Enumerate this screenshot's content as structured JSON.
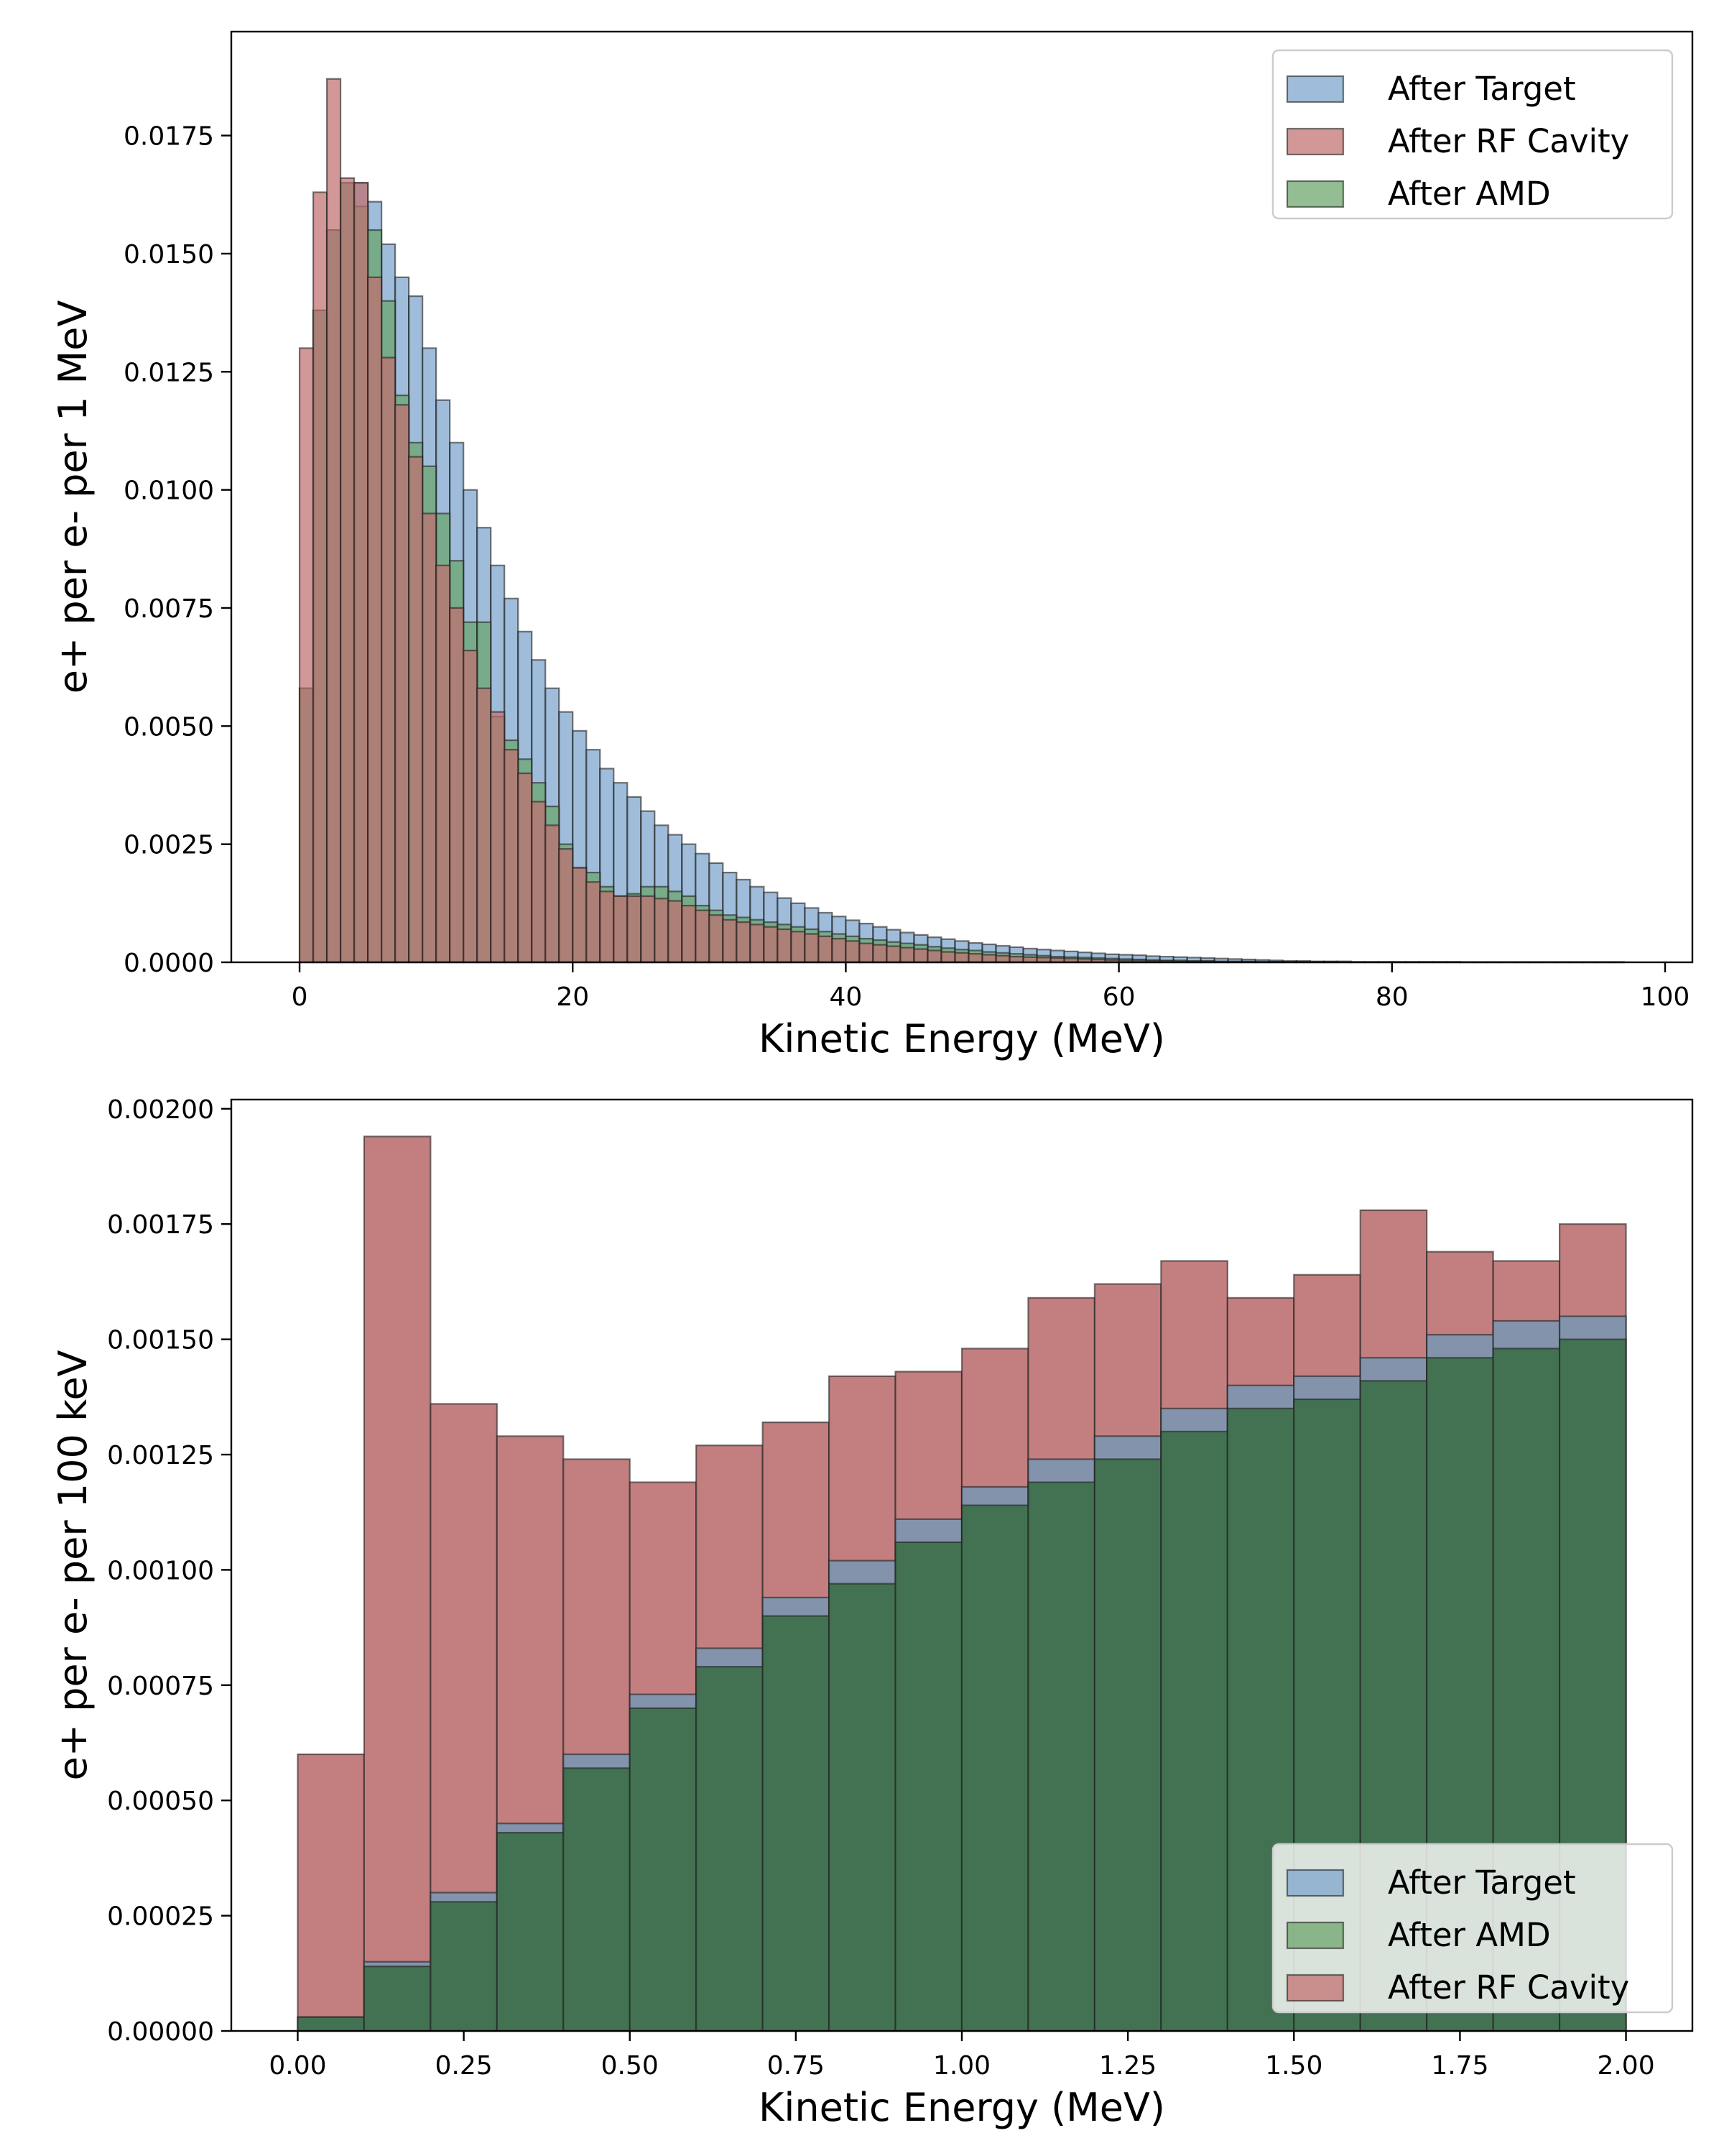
{
  "chart_data": [
    {
      "type": "bar",
      "subtype": "histogram",
      "xlabel": "Kinetic Energy (MeV)",
      "ylabel": "e+ per e- per 1 MeV",
      "xlim": [
        -5,
        102
      ],
      "ylim": [
        0,
        0.0197
      ],
      "x_ticks": [
        0,
        20,
        40,
        60,
        80,
        100
      ],
      "y_ticks": [
        0.0,
        0.0025,
        0.005,
        0.0075,
        0.01,
        0.0125,
        0.015,
        0.0175
      ],
      "y_tick_labels": [
        "0.0000",
        "0.0025",
        "0.0050",
        "0.0075",
        "0.0100",
        "0.0125",
        "0.0150",
        "0.0175"
      ],
      "x_tick_labels": [
        "0",
        "20",
        "40",
        "60",
        "80",
        "100"
      ],
      "bin_start": 0,
      "bin_width": 1,
      "legend_position": "top-right",
      "legend": [
        "After Target",
        "After RF Cavity",
        "After AMD"
      ],
      "series": [
        {
          "name": "After Target",
          "color": "#7aa4cc",
          "values": [
            0.0058,
            0.0138,
            0.0155,
            0.0165,
            0.0165,
            0.0161,
            0.0152,
            0.0145,
            0.0141,
            0.013,
            0.0119,
            0.011,
            0.01,
            0.0092,
            0.0084,
            0.0077,
            0.007,
            0.0064,
            0.0058,
            0.0053,
            0.0049,
            0.0045,
            0.0041,
            0.0038,
            0.0035,
            0.0032,
            0.0029,
            0.0027,
            0.0025,
            0.0023,
            0.0021,
            0.0019,
            0.00175,
            0.0016,
            0.00148,
            0.00136,
            0.00125,
            0.00115,
            0.00105,
            0.00097,
            0.00089,
            0.00082,
            0.00075,
            0.00069,
            0.00063,
            0.00058,
            0.00053,
            0.00049,
            0.00045,
            0.00041,
            0.00038,
            0.00035,
            0.00032,
            0.00029,
            0.00027,
            0.00025,
            0.00023,
            0.00021,
            0.00019,
            0.00017,
            0.00016,
            0.00015,
            0.00013,
            0.00012,
            0.00011,
            0.0001,
            9e-05,
            8e-05,
            7e-05,
            6e-05,
            5e-05,
            4e-05,
            3e-05,
            3e-05,
            2e-05,
            2e-05,
            2e-05,
            1e-05,
            1e-05,
            1e-05,
            1e-05,
            1e-05,
            1e-05,
            1e-05,
            1e-05,
            5e-06,
            5e-06,
            5e-06,
            5e-06,
            5e-06,
            5e-06,
            5e-06,
            5e-06,
            5e-06,
            5e-06,
            5e-06,
            5e-06
          ]
        },
        {
          "name": "After AMD",
          "color": "#6aa36a",
          "values": [
            0.0058,
            0.0138,
            0.0155,
            0.0165,
            0.016,
            0.0155,
            0.014,
            0.012,
            0.011,
            0.0105,
            0.0095,
            0.0085,
            0.0072,
            0.0072,
            0.0052,
            0.0047,
            0.0043,
            0.0038,
            0.0033,
            0.0025,
            0.002,
            0.0019,
            0.0016,
            0.0014,
            0.00145,
            0.0016,
            0.0016,
            0.0015,
            0.0014,
            0.0012,
            0.0011,
            0.001,
            0.00095,
            0.0009,
            0.00085,
            0.0008,
            0.00075,
            0.0007,
            0.00065,
            0.0006,
            0.00055,
            0.0005,
            0.00047,
            0.00043,
            0.0004,
            0.00037,
            0.00033,
            0.0003,
            0.00027,
            0.00025,
            0.00022,
            0.0002,
            0.00018,
            0.00016,
            0.00014,
            0.00012,
            0.00011,
            0.0001,
            9e-05,
            8e-05,
            7e-05,
            6e-05,
            5e-05,
            4e-05,
            4e-05,
            3e-05,
            3e-05,
            2e-05,
            2e-05,
            2e-05,
            1e-05,
            1e-05,
            1e-05,
            1e-05,
            1e-05,
            1e-05,
            5e-06,
            5e-06,
            5e-06,
            5e-06,
            5e-06,
            5e-06,
            5e-06,
            5e-06,
            5e-06,
            5e-06,
            5e-06,
            5e-06,
            5e-06,
            5e-06,
            5e-06,
            5e-06,
            5e-06,
            5e-06,
            5e-06,
            5e-06,
            5e-06
          ]
        },
        {
          "name": "After RF Cavity",
          "color": "#c06f6f",
          "values": [
            0.013,
            0.0163,
            0.0187,
            0.0166,
            0.0165,
            0.0145,
            0.0128,
            0.0118,
            0.0107,
            0.0095,
            0.0084,
            0.0075,
            0.0066,
            0.0058,
            0.0053,
            0.0045,
            0.004,
            0.0034,
            0.0029,
            0.0024,
            0.002,
            0.0017,
            0.0015,
            0.0014,
            0.0014,
            0.0014,
            0.00135,
            0.0013,
            0.0012,
            0.0011,
            0.001,
            0.0009,
            0.00085,
            0.0008,
            0.00075,
            0.0007,
            0.00065,
            0.0006,
            0.00055,
            0.0005,
            0.00045,
            0.0004,
            0.00037,
            0.00034,
            0.00031,
            0.00028,
            0.00025,
            0.00022,
            0.0002,
            0.00018,
            0.00016,
            0.00014,
            0.00012,
            0.00011,
            0.0001,
            9e-05,
            8e-05,
            7e-05,
            6e-05,
            5e-05,
            4e-05,
            4e-05,
            3e-05,
            3e-05,
            2e-05,
            2e-05,
            2e-05,
            1e-05,
            1e-05,
            1e-05,
            1e-05,
            1e-05,
            5e-06,
            5e-06,
            5e-06,
            5e-06,
            5e-06,
            5e-06,
            5e-06,
            5e-06,
            5e-06,
            5e-06,
            5e-06,
            5e-06,
            5e-06,
            5e-06,
            5e-06,
            5e-06,
            5e-06,
            5e-06,
            5e-06,
            5e-06,
            5e-06,
            5e-06,
            5e-06,
            5e-06,
            5e-06
          ]
        }
      ]
    },
    {
      "type": "bar",
      "subtype": "histogram",
      "xlabel": "Kinetic Energy (MeV)",
      "ylabel": "e+ per e- per 100 keV",
      "xlim": [
        -0.1,
        2.1
      ],
      "ylim": [
        0,
        0.00202
      ],
      "x_ticks": [
        0.0,
        0.25,
        0.5,
        0.75,
        1.0,
        1.25,
        1.5,
        1.75,
        2.0
      ],
      "y_ticks": [
        0.0,
        0.00025,
        0.0005,
        0.00075,
        0.001,
        0.00125,
        0.0015,
        0.00175,
        0.002
      ],
      "y_tick_labels": [
        "0.00000",
        "0.00025",
        "0.00050",
        "0.00075",
        "0.00100",
        "0.00125",
        "0.00150",
        "0.00175",
        "0.00200"
      ],
      "x_tick_labels": [
        "0.00",
        "0.25",
        "0.50",
        "0.75",
        "1.00",
        "1.25",
        "1.50",
        "1.75",
        "2.00"
      ],
      "bin_start": 0,
      "bin_width": 0.1,
      "legend_position": "bottom-right",
      "legend": [
        "After Target",
        "After AMD",
        "After RF Cavity"
      ],
      "series": [
        {
          "name": "After RF Cavity",
          "color": "#c17b7b",
          "values": [
            0.0006,
            0.00194,
            0.00136,
            0.00129,
            0.00124,
            0.00119,
            0.00127,
            0.00132,
            0.00142,
            0.00143,
            0.00148,
            0.00159,
            0.00162,
            0.00167,
            0.00159,
            0.00164,
            0.00178,
            0.00169,
            0.00167,
            0.00175
          ]
        },
        {
          "name": "After Target",
          "color": "#8094ac",
          "values": [
            3e-05,
            0.00015,
            0.0003,
            0.00045,
            0.0006,
            0.00073,
            0.00083,
            0.00094,
            0.00102,
            0.00111,
            0.00118,
            0.00124,
            0.00129,
            0.00135,
            0.0014,
            0.00142,
            0.00146,
            0.00151,
            0.00154,
            0.00155
          ]
        },
        {
          "name": "After AMD",
          "color": "#417150",
          "values": [
            3e-05,
            0.00014,
            0.00028,
            0.00043,
            0.00057,
            0.0007,
            0.00079,
            0.0009,
            0.00097,
            0.00106,
            0.00114,
            0.00119,
            0.00124,
            0.0013,
            0.00135,
            0.00137,
            0.00141,
            0.00146,
            0.00148,
            0.0015
          ]
        }
      ],
      "legend_colors": [
        "#7aa4cc",
        "#6aa36a",
        "#c06f6f"
      ]
    }
  ]
}
